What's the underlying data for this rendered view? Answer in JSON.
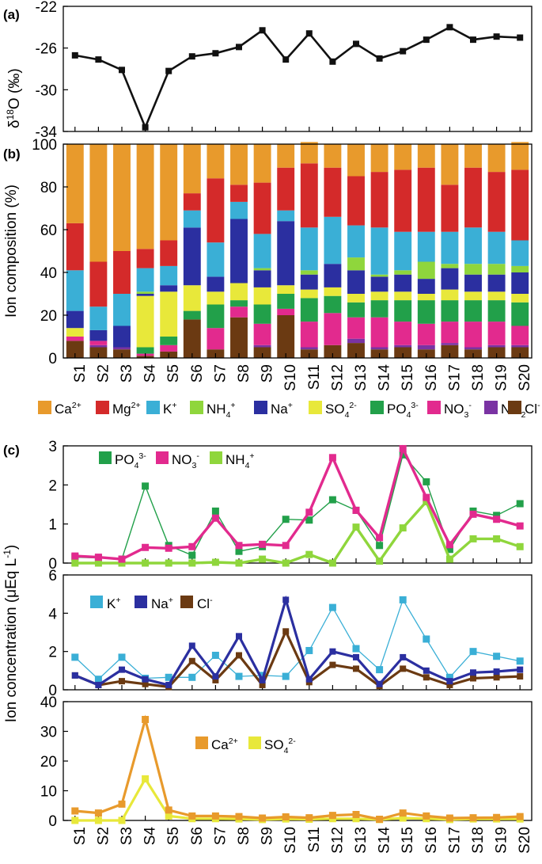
{
  "categories": [
    "S1",
    "S2",
    "S3",
    "S4",
    "S5",
    "S6",
    "S7",
    "S8",
    "S9",
    "S10",
    "S11",
    "S12",
    "S13",
    "S14",
    "S15",
    "S16",
    "S17",
    "S18",
    "S19",
    "S20"
  ],
  "colors": {
    "Ca": "#e89a2c",
    "Mg": "#d42a2a",
    "K": "#3aafd6",
    "NH4": "#8fd63c",
    "Na": "#2b2fa0",
    "SO4": "#e8e83a",
    "PO4": "#22a04a",
    "NO3": "#e22a8e",
    "NO2": "#7a33a3",
    "Cl": "#6b3a12",
    "d18O": "#111111"
  },
  "chart_data": [
    {
      "id": "a",
      "panel_label": "(a)",
      "type": "line",
      "ylabel": "δ18O (‰)",
      "ylim": [
        -34,
        -22
      ],
      "yticks": [
        -22,
        -26,
        -30,
        -34
      ],
      "series": [
        {
          "key": "d18O",
          "values": [
            -26.7,
            -27.1,
            -28.1,
            -33.6,
            -28.2,
            -26.8,
            -26.5,
            -25.9,
            -24.3,
            -27.1,
            -24.6,
            -27.3,
            -25.6,
            -27.0,
            -26.3,
            -25.2,
            -24.0,
            -25.2,
            -24.9,
            -25.0
          ]
        }
      ]
    },
    {
      "id": "b",
      "panel_label": "(b)",
      "type": "bar",
      "stacked": true,
      "ylabel": "Ion composition (%)",
      "ylim": [
        0,
        100
      ],
      "yticks": [
        0,
        20,
        40,
        60,
        80,
        100
      ],
      "legend": [
        {
          "key": "Ca",
          "base": "Ca",
          "sup": "2+",
          "sub": ""
        },
        {
          "key": "Mg",
          "base": "Mg",
          "sup": "2+",
          "sub": ""
        },
        {
          "key": "K",
          "base": "K",
          "sup": "+",
          "sub": ""
        },
        {
          "key": "NH4",
          "base": "NH",
          "sub": "4",
          "sup": "+"
        },
        {
          "key": "Na",
          "base": "Na",
          "sup": "+",
          "sub": ""
        },
        {
          "key": "SO4",
          "base": "SO",
          "sub": "4",
          "sup": "2-"
        },
        {
          "key": "PO4",
          "base": "PO",
          "sub": "4",
          "sup": "3-"
        },
        {
          "key": "NO3",
          "base": "NO",
          "sub": "3",
          "sup": "-"
        },
        {
          "key": "NO2",
          "base": "NO",
          "sub": "2",
          "sup": "-"
        },
        {
          "key": "Cl",
          "base": "Cl",
          "sup": "-",
          "sub": ""
        }
      ],
      "series": [
        {
          "key": "Cl",
          "values": [
            8,
            5,
            4,
            1,
            3,
            18,
            4,
            19,
            5,
            20,
            4,
            6,
            7,
            4,
            5,
            4,
            6,
            4,
            5,
            5
          ]
        },
        {
          "key": "NO2",
          "values": [
            0,
            1,
            1,
            0,
            0,
            0,
            0,
            0,
            1,
            0,
            1,
            0,
            2,
            1,
            1,
            2,
            1,
            1,
            1,
            1
          ]
        },
        {
          "key": "NO3",
          "values": [
            2,
            2,
            0,
            1,
            3,
            0,
            10,
            5,
            10,
            3,
            12,
            15,
            10,
            14,
            11,
            10,
            10,
            12,
            11,
            9
          ]
        },
        {
          "key": "PO4",
          "values": [
            0,
            0,
            0,
            3,
            4,
            4,
            11,
            3,
            9,
            7,
            11,
            8,
            7,
            8,
            10,
            11,
            10,
            10,
            10,
            11
          ]
        },
        {
          "key": "SO4",
          "values": [
            4,
            0,
            0,
            24,
            21,
            12,
            6,
            8,
            8,
            4,
            4,
            4,
            4,
            4,
            4,
            3,
            5,
            4,
            4,
            4
          ]
        },
        {
          "key": "Na",
          "values": [
            8,
            5,
            10,
            1,
            3,
            27,
            7,
            30,
            8,
            30,
            7,
            11,
            11,
            7,
            8,
            7,
            10,
            8,
            8,
            10
          ]
        },
        {
          "key": "NH4",
          "values": [
            0,
            0,
            0,
            1,
            0,
            0,
            0,
            0,
            1,
            0,
            2,
            0,
            6,
            1,
            2,
            8,
            2,
            5,
            5,
            3
          ]
        },
        {
          "key": "K",
          "values": [
            19,
            11,
            15,
            11,
            9,
            8,
            16,
            8,
            16,
            5,
            20,
            22,
            15,
            22,
            18,
            14,
            15,
            17,
            15,
            12
          ]
        },
        {
          "key": "Mg",
          "values": [
            22,
            21,
            20,
            9,
            12,
            8,
            30,
            8,
            24,
            20,
            30,
            23,
            23,
            26,
            29,
            30,
            22,
            28,
            28,
            33
          ]
        },
        {
          "key": "Ca",
          "values": [
            37,
            55,
            50,
            49,
            45,
            23,
            16,
            19,
            18,
            11,
            10,
            11,
            15,
            13,
            12,
            11,
            19,
            11,
            13,
            13
          ]
        }
      ]
    },
    {
      "id": "c1",
      "panel_label": "(c)",
      "type": "line",
      "ylim": [
        0,
        3
      ],
      "yticks": [
        0,
        1,
        2,
        3
      ],
      "legend": [
        {
          "key": "PO4",
          "base": "PO",
          "sub": "4",
          "sup": "3-"
        },
        {
          "key": "NO3",
          "base": "NO",
          "sub": "3",
          "sup": "-"
        },
        {
          "key": "NH4",
          "base": "NH",
          "sub": "4",
          "sup": "+"
        }
      ],
      "series": [
        {
          "key": "PO4",
          "values": [
            0.15,
            0.13,
            0.1,
            1.97,
            0.45,
            0.2,
            1.33,
            0.3,
            0.42,
            1.12,
            1.1,
            1.62,
            1.35,
            0.45,
            2.77,
            2.08,
            0.35,
            1.33,
            1.22,
            1.52
          ]
        },
        {
          "key": "NO3",
          "values": [
            0.18,
            0.15,
            0.1,
            0.4,
            0.38,
            0.42,
            1.15,
            0.45,
            0.48,
            0.45,
            1.3,
            2.7,
            1.35,
            0.65,
            2.93,
            1.68,
            0.47,
            1.25,
            1.12,
            0.95
          ]
        },
        {
          "key": "NH4",
          "values": [
            0.0,
            0.0,
            0.0,
            0.0,
            0.0,
            0.0,
            0.02,
            0.0,
            0.1,
            0.0,
            0.22,
            0.0,
            0.92,
            0.05,
            0.9,
            1.57,
            0.1,
            0.62,
            0.62,
            0.42
          ]
        }
      ]
    },
    {
      "id": "c2",
      "type": "line",
      "ylim": [
        0,
        6
      ],
      "yticks": [
        0,
        2,
        4,
        6
      ],
      "legend": [
        {
          "key": "K",
          "base": "K",
          "sup": "+",
          "sub": ""
        },
        {
          "key": "Na",
          "base": "Na",
          "sup": "+",
          "sub": ""
        },
        {
          "key": "Cl",
          "base": "Cl",
          "sup": "-",
          "sub": ""
        }
      ],
      "series": [
        {
          "key": "K",
          "values": [
            1.7,
            0.55,
            1.7,
            0.6,
            0.65,
            0.65,
            1.8,
            0.7,
            0.75,
            0.7,
            2.05,
            4.3,
            2.15,
            1.05,
            4.7,
            2.65,
            0.65,
            2.0,
            1.75,
            1.5
          ]
        },
        {
          "key": "Na",
          "values": [
            0.75,
            0.25,
            1.05,
            0.55,
            0.25,
            2.3,
            0.7,
            2.8,
            0.5,
            4.7,
            0.55,
            2.0,
            1.7,
            0.3,
            1.7,
            1.0,
            0.45,
            0.9,
            0.95,
            1.05
          ]
        },
        {
          "key": "Cl",
          "values": [
            0.75,
            0.25,
            0.45,
            0.3,
            0.15,
            1.5,
            0.5,
            1.8,
            0.25,
            3.05,
            0.4,
            1.3,
            1.1,
            0.2,
            1.1,
            0.65,
            0.25,
            0.6,
            0.65,
            0.7
          ]
        }
      ]
    },
    {
      "id": "c3",
      "type": "line",
      "ylabel": "Ion concentration (μEq L-1)",
      "ylim": [
        0,
        40
      ],
      "yticks": [
        0,
        10,
        20,
        30,
        40
      ],
      "legend": [
        {
          "key": "Ca",
          "base": "Ca",
          "sup": "2+",
          "sub": ""
        },
        {
          "key": "SO4",
          "base": "SO",
          "sub": "4",
          "sup": "2-"
        }
      ],
      "series": [
        {
          "key": "Ca",
          "values": [
            3.2,
            2.5,
            5.5,
            34.0,
            3.5,
            1.5,
            1.5,
            1.3,
            0.8,
            1.2,
            0.9,
            1.7,
            2.0,
            0.4,
            2.5,
            1.5,
            0.8,
            0.9,
            1.0,
            1.3
          ]
        },
        {
          "key": "SO4",
          "values": [
            0.0,
            0.0,
            0.0,
            14.0,
            1.5,
            0.6,
            0.6,
            0.5,
            0.3,
            0.5,
            0.4,
            0.6,
            0.6,
            0.3,
            0.8,
            0.6,
            0.3,
            0.5,
            0.5,
            0.5
          ]
        }
      ]
    }
  ]
}
